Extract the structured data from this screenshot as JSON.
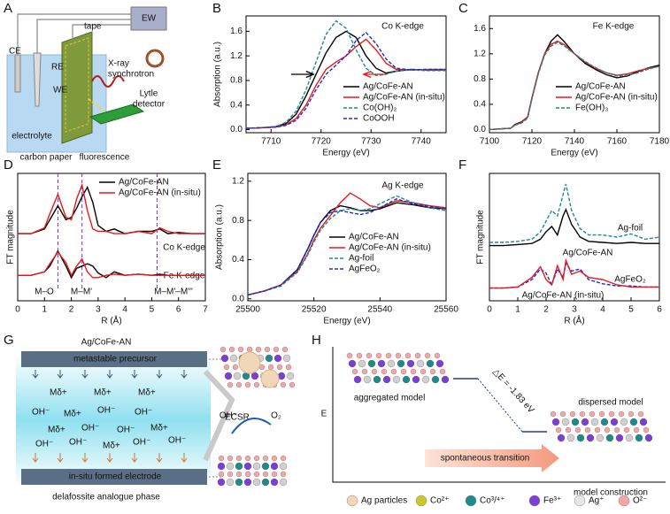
{
  "chart_data": [
    {
      "type": "line",
      "panel": "B",
      "title": "Co K-edge",
      "xlabel": "Energy (eV)",
      "ylabel": "Absorption (a.u.)",
      "x": [
        7705,
        7708,
        7711,
        7713,
        7715,
        7717,
        7719,
        7721,
        7723,
        7725,
        7727,
        7729,
        7731,
        7733,
        7735,
        7738,
        7741,
        7745
      ],
      "series": [
        {
          "name": "Ag/CoFe-AN",
          "color": "#000000",
          "dash": false,
          "values": [
            0.02,
            0.03,
            0.05,
            0.1,
            0.25,
            0.55,
            0.9,
            1.25,
            1.5,
            1.6,
            1.5,
            1.2,
            1.0,
            0.92,
            0.95,
            0.98,
            0.97,
            0.97
          ]
        },
        {
          "name": "Ag/CoFe-AN (in-situ)",
          "color": "#e8191a",
          "dash": false,
          "values": [
            0.02,
            0.03,
            0.04,
            0.08,
            0.18,
            0.4,
            0.72,
            0.98,
            1.1,
            1.2,
            1.35,
            1.47,
            1.3,
            1.08,
            0.98,
            0.97,
            0.98,
            0.98
          ]
        },
        {
          "name": "Co(OH)₂",
          "color": "#1e8a8a",
          "dash": true,
          "values": [
            0.02,
            0.03,
            0.05,
            0.12,
            0.3,
            0.65,
            1.1,
            1.55,
            1.77,
            1.65,
            1.3,
            1.0,
            0.88,
            0.9,
            0.95,
            0.97,
            0.96,
            0.96
          ]
        },
        {
          "name": "CoOOH",
          "color": "#1f2bd6",
          "dash": true,
          "values": [
            0.02,
            0.03,
            0.04,
            0.07,
            0.15,
            0.35,
            0.65,
            0.9,
            1.05,
            1.2,
            1.45,
            1.58,
            1.4,
            1.15,
            1.0,
            0.97,
            0.98,
            0.98
          ]
        }
      ],
      "xlim": [
        7705,
        7745
      ],
      "xticks": [
        7710,
        7720,
        7730,
        7740
      ],
      "ylim": [
        -0.05,
        1.85
      ],
      "yticks": [
        {
          "value": 0,
          "label": "0.0"
        },
        0.4,
        0.8,
        1.2,
        1.6
      ]
    },
    {
      "type": "line",
      "panel": "C",
      "title": "Fe K-edge",
      "xlabel": "Energy (eV)",
      "x": [
        7100,
        7110,
        7112,
        7115,
        7118,
        7120,
        7123,
        7126,
        7129,
        7132,
        7135,
        7140,
        7145,
        7150,
        7155,
        7160,
        7165,
        7170,
        7175,
        7180
      ],
      "series": [
        {
          "name": "Ag/CoFe-AN",
          "color": "#000000",
          "dash": false,
          "values": [
            0,
            0.02,
            0.08,
            0.12,
            0.2,
            0.5,
            0.9,
            1.2,
            1.4,
            1.5,
            1.4,
            1.2,
            1.05,
            0.95,
            0.87,
            0.82,
            0.85,
            0.92,
            0.98,
            1.02
          ]
        },
        {
          "name": "Ag/CoFe-AN (in-situ)",
          "color": "#e8191a",
          "dash": false,
          "values": [
            0,
            0.02,
            0.07,
            0.11,
            0.2,
            0.5,
            0.9,
            1.2,
            1.35,
            1.4,
            1.35,
            1.2,
            1.07,
            0.97,
            0.9,
            0.86,
            0.88,
            0.93,
            0.97,
            1.0
          ]
        },
        {
          "name": "Fe(OH)₃",
          "color": "#1e8a8a",
          "dash": true,
          "values": [
            0,
            0.02,
            0.07,
            0.1,
            0.18,
            0.48,
            0.88,
            1.18,
            1.32,
            1.38,
            1.33,
            1.2,
            1.08,
            0.98,
            0.9,
            0.85,
            0.86,
            0.9,
            0.96,
            1.0
          ]
        }
      ],
      "xlim": [
        7100,
        7180
      ],
      "xticks": [
        7100,
        7120,
        7140,
        7160,
        7180
      ],
      "ylim": [
        -0.05,
        1.8
      ],
      "yticks": [
        {
          "value": 0,
          "label": "0.0"
        },
        0.4,
        0.8,
        1.2,
        1.6
      ]
    },
    {
      "type": "line",
      "panel": "D",
      "xlabel": "R (Å)",
      "ylabel": "FT magnitude",
      "annotations": [
        "Co K-edge",
        "Fe K-edge",
        "M–O",
        "M–M'",
        "M–M'–M'''"
      ],
      "x": [
        0,
        0.5,
        1,
        1.2,
        1.5,
        1.8,
        2,
        2.2,
        2.4,
        2.6,
        2.8,
        3,
        3.3,
        3.6,
        4,
        4.5,
        5,
        5.3,
        5.6,
        6,
        6.5,
        7
      ],
      "series": [
        {
          "name": "Ag/CoFe-AN",
          "color": "#000000",
          "dash": false,
          "values": [
            0.58,
            0.58,
            0.62,
            0.7,
            0.82,
            0.7,
            0.72,
            0.8,
            0.9,
            0.98,
            0.85,
            0.65,
            0.6,
            0.62,
            0.58,
            0.6,
            0.6,
            0.62,
            0.58,
            0.59,
            0.58,
            0.58
          ]
        },
        {
          "name": "Ag/CoFe-AN (in-situ)",
          "color": "#e8191a",
          "dash": false,
          "values": [
            0.58,
            0.58,
            0.63,
            0.75,
            0.92,
            0.72,
            0.7,
            0.88,
            1.0,
            0.78,
            0.62,
            0.6,
            0.6,
            0.58,
            0.58,
            0.6,
            0.58,
            0.63,
            0.6,
            0.58,
            0.58,
            0.58
          ]
        },
        {
          "color": "#000000",
          "dash": false,
          "values": [
            0.22,
            0.22,
            0.25,
            0.3,
            0.43,
            0.3,
            0.2,
            0.28,
            0.3,
            0.32,
            0.3,
            0.24,
            0.2,
            0.25,
            0.22,
            0.23,
            0.22,
            0.23,
            0.22,
            0.22,
            0.22,
            0.22
          ]
        },
        {
          "color": "#e8191a",
          "dash": false,
          "values": [
            0.22,
            0.22,
            0.25,
            0.32,
            0.42,
            0.33,
            0.22,
            0.3,
            0.36,
            0.25,
            0.2,
            0.2,
            0.22,
            0.23,
            0.22,
            0.23,
            0.22,
            0.22,
            0.22,
            0.22,
            0.22,
            0.22
          ]
        }
      ],
      "vlines": [
        1.5,
        2.4,
        5.2
      ],
      "vline_color": "#7b2fd6",
      "xlim": [
        0,
        7
      ],
      "xticks": [
        0,
        1,
        2,
        3,
        4,
        5,
        6,
        7
      ],
      "ylim": [
        0,
        1.1
      ]
    },
    {
      "type": "line",
      "panel": "E",
      "title": "Ag K-edge",
      "xlabel": "Energy (eV)",
      "ylabel": "Absorption (a.u.)",
      "x": [
        25500,
        25505,
        25510,
        25515,
        25518,
        25520,
        25522,
        25525,
        25528,
        25531,
        25534,
        25537,
        25540,
        25545,
        25550,
        25555,
        25560
      ],
      "series": [
        {
          "name": "Ag/CoFe-AN",
          "color": "#000000",
          "dash": false,
          "values": [
            0.04,
            0.08,
            0.14,
            0.3,
            0.5,
            0.65,
            0.78,
            0.9,
            0.95,
            0.93,
            0.9,
            0.9,
            0.92,
            0.98,
            0.96,
            0.93,
            0.92
          ]
        },
        {
          "name": "Ag/CoFe-AN (in-situ)",
          "color": "#e8191a",
          "dash": false,
          "values": [
            0.04,
            0.08,
            0.14,
            0.28,
            0.45,
            0.6,
            0.72,
            0.85,
            0.98,
            1.08,
            1.02,
            0.95,
            0.93,
            1.0,
            0.98,
            0.95,
            0.93
          ]
        },
        {
          "name": "Ag-foil",
          "color": "#1e8a8a",
          "dash": true,
          "values": [
            0.04,
            0.08,
            0.13,
            0.27,
            0.44,
            0.58,
            0.7,
            0.82,
            0.9,
            0.92,
            0.9,
            0.92,
            0.97,
            1.05,
            0.98,
            0.93,
            0.9
          ]
        },
        {
          "name": "AgFeO₂",
          "color": "#1f2bd6",
          "dash": true,
          "values": [
            0.04,
            0.08,
            0.14,
            0.3,
            0.5,
            0.65,
            0.78,
            0.88,
            0.9,
            0.88,
            0.86,
            0.88,
            0.93,
            1.02,
            0.97,
            0.94,
            0.92
          ]
        }
      ],
      "xlim": [
        25500,
        25560
      ],
      "xticks": [
        25500,
        25520,
        25540,
        25560
      ],
      "ylim": [
        -0.02,
        1.28
      ],
      "yticks": [
        {
          "value": 0,
          "label": "0.0"
        },
        0.4,
        0.8,
        1.2
      ]
    },
    {
      "type": "line",
      "panel": "F",
      "xlabel": "R (Å)",
      "ylabel": "FT magnitude",
      "x": [
        0,
        0.5,
        1,
        1.5,
        1.8,
        2,
        2.2,
        2.4,
        2.6,
        2.7,
        2.9,
        3.2,
        3.5,
        4,
        4.5,
        5,
        5.5,
        6
      ],
      "series": [
        {
          "name": "Ag-foil",
          "color": "#1e8a8a",
          "dash": true,
          "values": [
            0.55,
            0.55,
            0.56,
            0.58,
            0.65,
            0.75,
            0.85,
            0.8,
            1.0,
            1.1,
            0.85,
            0.68,
            0.62,
            0.62,
            0.6,
            0.63,
            0.58,
            0.6
          ]
        },
        {
          "name": "Ag/CoFe-AN",
          "color": "#000000",
          "dash": false,
          "values": [
            0.52,
            0.52,
            0.53,
            0.54,
            0.58,
            0.65,
            0.7,
            0.62,
            0.8,
            0.86,
            0.72,
            0.6,
            0.56,
            0.55,
            0.54,
            0.55,
            0.54,
            0.54
          ]
        },
        {
          "name": "AgFeO₂",
          "color": "#1f2bd6",
          "dash": true,
          "values": [
            0.12,
            0.12,
            0.13,
            0.2,
            0.3,
            0.26,
            0.15,
            0.3,
            0.22,
            0.35,
            0.28,
            0.3,
            0.2,
            0.16,
            0.14,
            0.14,
            0.13,
            0.13
          ]
        },
        {
          "name": "Ag/CoFe-AN (in-situ)",
          "color": "#e8191a",
          "dash": false,
          "values": [
            0.12,
            0.12,
            0.13,
            0.22,
            0.32,
            0.2,
            0.15,
            0.33,
            0.2,
            0.38,
            0.25,
            0.28,
            0.22,
            0.2,
            0.15,
            0.13,
            0.13,
            0.13
          ]
        }
      ],
      "xlim": [
        0,
        6
      ],
      "xticks": [
        0,
        1,
        2,
        3,
        4,
        5,
        6
      ],
      "ylim": [
        0,
        1.2
      ]
    }
  ],
  "panel_a": {
    "label": "A",
    "texts": {
      "ew": "EW",
      "tape": "tape",
      "ce": "CE",
      "re": "RE",
      "xray": "X-ray",
      "synchrotron": "synchrotron",
      "we": "WE",
      "lytle": "Lytle",
      "detector": "detector",
      "electrolyte": "electrolyte",
      "carbon_paper": "carbon paper",
      "fluorescence": "fluorescence"
    }
  },
  "panel_g": {
    "label": "G",
    "title": "Ag/CoFe-AN",
    "precursor": "metastable  precursor",
    "ions": [
      "Mδ+",
      "Mδ+",
      "Mδ+",
      "OH⁻",
      "Mδ+",
      "OH⁻",
      "OH⁻",
      "Mδ+",
      "OH⁻",
      "OH⁻",
      "Mδ+",
      "OH⁻",
      "OH⁻",
      "Mδ+",
      "OH⁻",
      "OH⁻"
    ],
    "ecsr": "ECSR",
    "oh": "OH⁻",
    "o2": "O₂",
    "electrode": "in-situ formed electrode",
    "phase": "delafossite analogue phase"
  },
  "panel_h": {
    "label": "H",
    "y_axis": "E",
    "x_axis": "model construction",
    "aggregated": "aggregated model",
    "dispersed": "dispersed model",
    "delta_e": "△E = -1.83 eV",
    "transition": "spontaneous transition",
    "legend": [
      "Ag particles",
      "Co²⁺",
      "Co³/⁴⁺",
      "Fe³⁺",
      "Ag⁺",
      "O²⁻"
    ]
  }
}
